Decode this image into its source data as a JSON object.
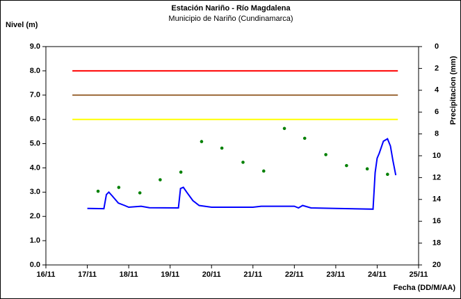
{
  "chart_data": {
    "type": "line",
    "title": "Estación Nariño  - Río Magdalena",
    "subtitle": "Municipio de Nariño (Cundinamarca)",
    "ylabel": "Nivel (m)",
    "y2label": "Precipitacion (mm)",
    "xlabel": "Fecha (DD/M/AA)",
    "xlim": [
      16,
      25
    ],
    "xticks": [
      {
        "value": 16,
        "label": "16/11"
      },
      {
        "value": 17,
        "label": "17/11"
      },
      {
        "value": 18,
        "label": "18/11"
      },
      {
        "value": 19,
        "label": "19/11"
      },
      {
        "value": 20,
        "label": "20/11"
      },
      {
        "value": 21,
        "label": "21/11"
      },
      {
        "value": 22,
        "label": "22/11"
      },
      {
        "value": 23,
        "label": "23/11"
      },
      {
        "value": 24,
        "label": "24/11"
      },
      {
        "value": 25,
        "label": "25/11"
      }
    ],
    "ylim": [
      0,
      9
    ],
    "yticks": [
      {
        "value": 0,
        "label": "0.0"
      },
      {
        "value": 1,
        "label": "1.0"
      },
      {
        "value": 2,
        "label": "2.0"
      },
      {
        "value": 3,
        "label": "3.0"
      },
      {
        "value": 4,
        "label": "4.0"
      },
      {
        "value": 5,
        "label": "5.0"
      },
      {
        "value": 6,
        "label": "6.0"
      },
      {
        "value": 7,
        "label": "7.0"
      },
      {
        "value": 8,
        "label": "8.0"
      },
      {
        "value": 9,
        "label": "9.0"
      }
    ],
    "y2lim": [
      0,
      20
    ],
    "y2_inverted": true,
    "y2ticks": [
      0,
      2,
      4,
      6,
      8,
      10,
      12,
      14,
      16,
      18,
      20
    ],
    "series": [
      {
        "color": "#ff0000",
        "style": "line",
        "x": [
          16.64,
          24.5
        ],
        "values": [
          8,
          8
        ]
      },
      {
        "color": "#996633",
        "style": "line",
        "x": [
          16.64,
          24.5
        ],
        "values": [
          7,
          7
        ]
      },
      {
        "color": "#ffff00",
        "style": "line",
        "x": [
          16.64,
          24.5
        ],
        "values": [
          6,
          6
        ]
      },
      {
        "color": "#0000ff",
        "style": "line",
        "x": [
          17.0,
          17.4,
          17.46,
          17.52,
          17.6,
          17.75,
          17.9,
          18.0,
          18.3,
          18.5,
          19.2,
          19.25,
          19.32,
          19.4,
          19.55,
          19.7,
          20.0,
          21.0,
          21.2,
          22.0,
          22.1,
          22.2,
          22.4,
          23.0,
          23.9,
          23.95,
          24.0,
          24.05,
          24.15,
          24.25,
          24.32,
          24.38,
          24.45
        ],
        "values": [
          2.33,
          2.32,
          2.9,
          3.0,
          2.85,
          2.55,
          2.45,
          2.38,
          2.42,
          2.36,
          2.35,
          3.15,
          3.2,
          3.0,
          2.65,
          2.45,
          2.38,
          2.38,
          2.42,
          2.42,
          2.35,
          2.45,
          2.35,
          2.33,
          2.3,
          3.8,
          4.4,
          4.6,
          5.1,
          5.2,
          4.9,
          4.3,
          3.7
        ]
      },
      {
        "color": "#008000",
        "style": "dots",
        "axis": "y2",
        "x": [
          17.26,
          17.76,
          18.27,
          18.76,
          19.26,
          19.76,
          20.25,
          20.76,
          21.26,
          21.76,
          22.25,
          22.76,
          23.26,
          23.76,
          24.25
        ],
        "values": [
          13.25,
          12.9,
          13.4,
          12.2,
          11.5,
          8.7,
          9.3,
          10.6,
          11.4,
          7.5,
          8.4,
          9.9,
          10.9,
          11.2,
          11.7
        ]
      }
    ]
  }
}
